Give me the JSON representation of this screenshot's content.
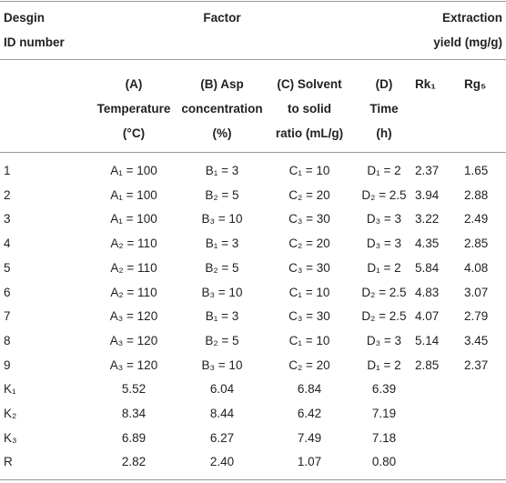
{
  "header": {
    "id": [
      "Desgin",
      "ID number"
    ],
    "factor": "Factor",
    "yield": [
      "Extraction",
      "yield (mg/g)"
    ]
  },
  "subheader": [
    [
      "(A)",
      "Temperature",
      "(°C)"
    ],
    [
      "(B) Asp",
      "concentration",
      "(%)"
    ],
    [
      "(C) Solvent",
      "to solid",
      "ratio (mL/g)"
    ],
    [
      "(D)",
      "Time",
      "(h)"
    ],
    [
      "Rk₁"
    ],
    [
      "Rg₅"
    ]
  ],
  "rows": [
    [
      "1",
      "A₁ = 100",
      "B₁ = 3",
      "C₁ = 10",
      "D₁ = 2",
      "2.37",
      "1.65"
    ],
    [
      "2",
      "A₁ = 100",
      "B₂ = 5",
      "C₂ = 20",
      "D₂ = 2.5",
      "3.94",
      "2.88"
    ],
    [
      "3",
      "A₁ = 100",
      "B₃ = 10",
      "C₃ = 30",
      "D₃ = 3",
      "3.22",
      "2.49"
    ],
    [
      "4",
      "A₂ = 110",
      "B₁ = 3",
      "C₂ = 20",
      "D₃ = 3",
      "4.35",
      "2.85"
    ],
    [
      "5",
      "A₂ = 110",
      "B₂ = 5",
      "C₃ = 30",
      "D₁ = 2",
      "5.84",
      "4.08"
    ],
    [
      "6",
      "A₂ = 110",
      "B₃ = 10",
      "C₁ = 10",
      "D₂ = 2.5",
      "4.83",
      "3.07"
    ],
    [
      "7",
      "A₃ = 120",
      "B₁ = 3",
      "C₃ = 30",
      "D₂ = 2.5",
      "4.07",
      "2.79"
    ],
    [
      "8",
      "A₃ = 120",
      "B₂ = 5",
      "C₁ = 10",
      "D₃ = 3",
      "5.14",
      "3.45"
    ],
    [
      "9",
      "A₃ = 120",
      "B₃ = 10",
      "C₂ = 20",
      "D₁ = 2",
      "2.85",
      "2.37"
    ],
    [
      "K₁",
      "5.52",
      "6.04",
      "6.84",
      "6.39"
    ],
    [
      "K₂",
      "8.34",
      "8.44",
      "6.42",
      "7.19"
    ],
    [
      "K₃",
      "6.89",
      "6.27",
      "7.49",
      "7.18"
    ],
    [
      "R",
      "2.82",
      "2.40",
      "1.07",
      "0.80"
    ]
  ]
}
